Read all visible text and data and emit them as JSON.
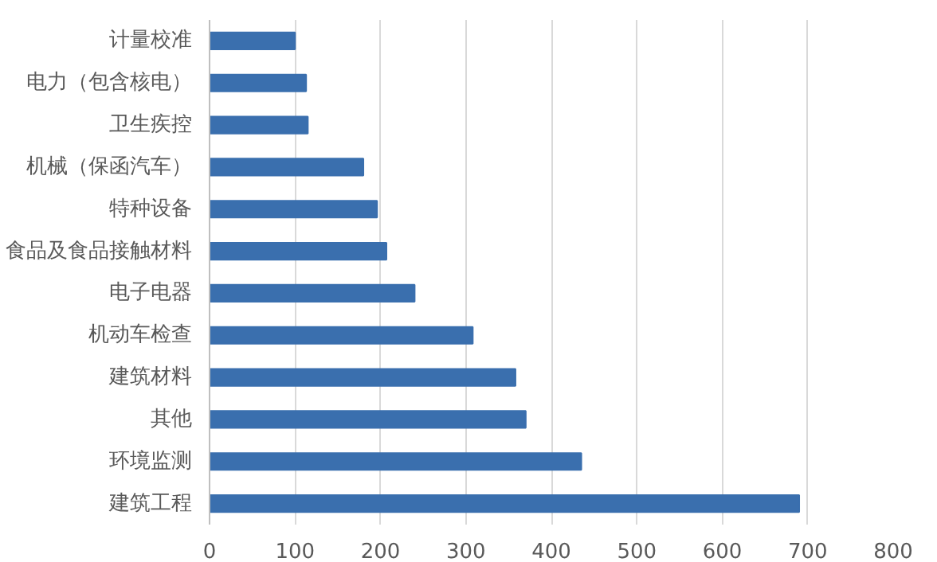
{
  "chart_data": {
    "type": "bar",
    "orientation": "horizontal",
    "categories": [
      "计量校准",
      "电力（包含核电）",
      "卫生疾控",
      "机械（保函汽车）",
      "特种设备",
      "食品及食品接触材料",
      "电子电器",
      "机动车检查",
      "建筑材料",
      "其他",
      "环境监测",
      "建筑工程"
    ],
    "values": [
      100,
      113,
      115,
      180,
      196,
      207,
      240,
      308,
      358,
      370,
      435,
      690
    ],
    "color": "#3a6fae",
    "xlim": [
      0,
      800
    ],
    "xticks": [
      0,
      100,
      200,
      300,
      400,
      500,
      600,
      700,
      800
    ],
    "grid": "x"
  }
}
